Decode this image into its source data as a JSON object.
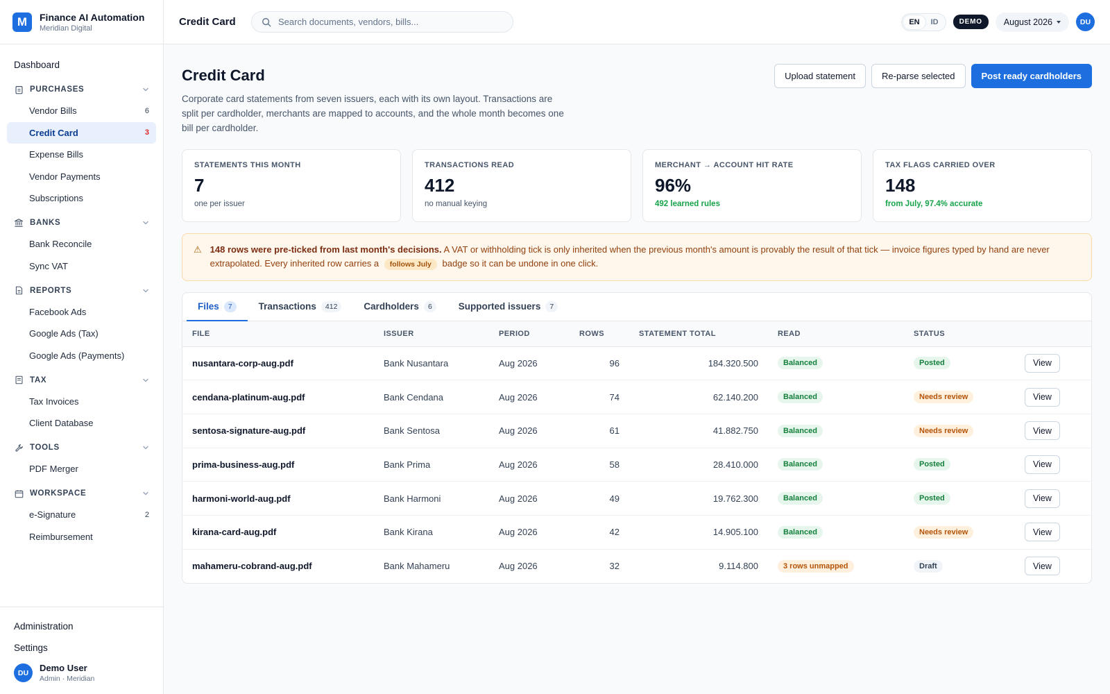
{
  "brand": {
    "logo_letter": "M",
    "name": "Finance AI Automation",
    "sub": "Meridian Digital"
  },
  "sidebar": {
    "dashboard": "Dashboard",
    "sections": [
      {
        "label": "PURCHASES",
        "icon": "clipboard-icon",
        "items": [
          {
            "label": "Vendor Bills",
            "count": "6"
          },
          {
            "label": "Credit Card",
            "count": "3",
            "active": true
          },
          {
            "label": "Expense Bills",
            "count": ""
          },
          {
            "label": "Vendor Payments",
            "count": ""
          },
          {
            "label": "Subscriptions",
            "count": ""
          }
        ]
      },
      {
        "label": "BANKS",
        "icon": "bank-icon",
        "items": [
          {
            "label": "Bank Reconcile",
            "count": ""
          },
          {
            "label": "Sync VAT",
            "count": ""
          }
        ]
      },
      {
        "label": "REPORTS",
        "icon": "document-icon",
        "items": [
          {
            "label": "Facebook Ads",
            "count": ""
          },
          {
            "label": "Google Ads (Tax)",
            "count": ""
          },
          {
            "label": "Google Ads (Payments)",
            "count": ""
          }
        ]
      },
      {
        "label": "TAX",
        "icon": "receipt-icon",
        "items": [
          {
            "label": "Tax Invoices",
            "count": ""
          },
          {
            "label": "Client Database",
            "count": ""
          }
        ]
      },
      {
        "label": "TOOLS",
        "icon": "wrench-icon",
        "items": [
          {
            "label": "PDF Merger",
            "count": ""
          }
        ]
      },
      {
        "label": "WORKSPACE",
        "icon": "calendar-icon",
        "items": [
          {
            "label": "e-Signature",
            "count": "2"
          },
          {
            "label": "Reimbursement",
            "count": ""
          }
        ]
      }
    ],
    "footer": {
      "admin": "Administration",
      "settings": "Settings"
    },
    "user": {
      "initials": "DU",
      "name": "Demo User",
      "role": "Admin · Meridian"
    }
  },
  "topbar": {
    "title": "Credit Card",
    "search_placeholder": "Search documents, vendors, bills...",
    "lang": [
      "EN",
      "ID"
    ],
    "demo": "DEMO",
    "month": "August 2026",
    "avatar": "DU"
  },
  "page": {
    "title": "Credit Card",
    "description": "Corporate card statements from seven issuers, each with its own layout. Transactions are split per cardholder, merchants are mapped to accounts, and the whole month becomes one bill per cardholder.",
    "actions": {
      "upload": "Upload statement",
      "reparse": "Re-parse selected",
      "post": "Post ready cardholders"
    }
  },
  "kpis": [
    {
      "label": "STATEMENTS THIS MONTH",
      "value": "7",
      "note": "one per issuer",
      "green": false
    },
    {
      "label": "TRANSACTIONS READ",
      "value": "412",
      "note": "no manual keying",
      "green": false
    },
    {
      "label": "MERCHANT → ACCOUNT HIT RATE",
      "value": "96%",
      "note": "492 learned rules",
      "green": true
    },
    {
      "label": "TAX FLAGS CARRIED OVER",
      "value": "148",
      "note": "from July, 97.4% accurate",
      "green": true
    }
  ],
  "alert": {
    "bold": "148 rows were pre-ticked from last month's decisions.",
    "text": " A VAT or withholding tick is only inherited when the previous month's amount is provably the result of that tick — invoice figures typed by hand are never extrapolated. Every inherited row carries a",
    "pill": "follows July",
    "tail": "badge so it can be undone in one click."
  },
  "tabs": [
    {
      "label": "Files",
      "count": "7"
    },
    {
      "label": "Transactions",
      "count": "412"
    },
    {
      "label": "Cardholders",
      "count": "6"
    },
    {
      "label": "Supported issuers",
      "count": "7"
    }
  ],
  "table": {
    "headers": {
      "file": "FILE",
      "issuer": "ISSUER",
      "period": "PERIOD",
      "rows": "ROWS",
      "total": "STATEMENT TOTAL",
      "read": "READ",
      "status": "STATUS"
    },
    "view_label": "View",
    "rows": [
      {
        "file": "nusantara-corp-aug.pdf",
        "issuer": "Bank Nusantara",
        "period": "Aug 2026",
        "rows": "96",
        "total": "184.320.500",
        "read": "Balanced",
        "read_tone": "green",
        "status": "Posted",
        "status_tone": "green"
      },
      {
        "file": "cendana-platinum-aug.pdf",
        "issuer": "Bank Cendana",
        "period": "Aug 2026",
        "rows": "74",
        "total": "62.140.200",
        "read": "Balanced",
        "read_tone": "green",
        "status": "Needs review",
        "status_tone": "amber"
      },
      {
        "file": "sentosa-signature-aug.pdf",
        "issuer": "Bank Sentosa",
        "period": "Aug 2026",
        "rows": "61",
        "total": "41.882.750",
        "read": "Balanced",
        "read_tone": "green",
        "status": "Needs review",
        "status_tone": "amber"
      },
      {
        "file": "prima-business-aug.pdf",
        "issuer": "Bank Prima",
        "period": "Aug 2026",
        "rows": "58",
        "total": "28.410.000",
        "read": "Balanced",
        "read_tone": "green",
        "status": "Posted",
        "status_tone": "green"
      },
      {
        "file": "harmoni-world-aug.pdf",
        "issuer": "Bank Harmoni",
        "period": "Aug 2026",
        "rows": "49",
        "total": "19.762.300",
        "read": "Balanced",
        "read_tone": "green",
        "status": "Posted",
        "status_tone": "green"
      },
      {
        "file": "kirana-card-aug.pdf",
        "issuer": "Bank Kirana",
        "period": "Aug 2026",
        "rows": "42",
        "total": "14.905.100",
        "read": "Balanced",
        "read_tone": "green",
        "status": "Needs review",
        "status_tone": "amber"
      },
      {
        "file": "mahameru-cobrand-aug.pdf",
        "issuer": "Bank Mahameru",
        "period": "Aug 2026",
        "rows": "32",
        "total": "9.114.800",
        "read": "3 rows unmapped",
        "read_tone": "amber",
        "status": "Draft",
        "status_tone": "gray"
      }
    ]
  }
}
